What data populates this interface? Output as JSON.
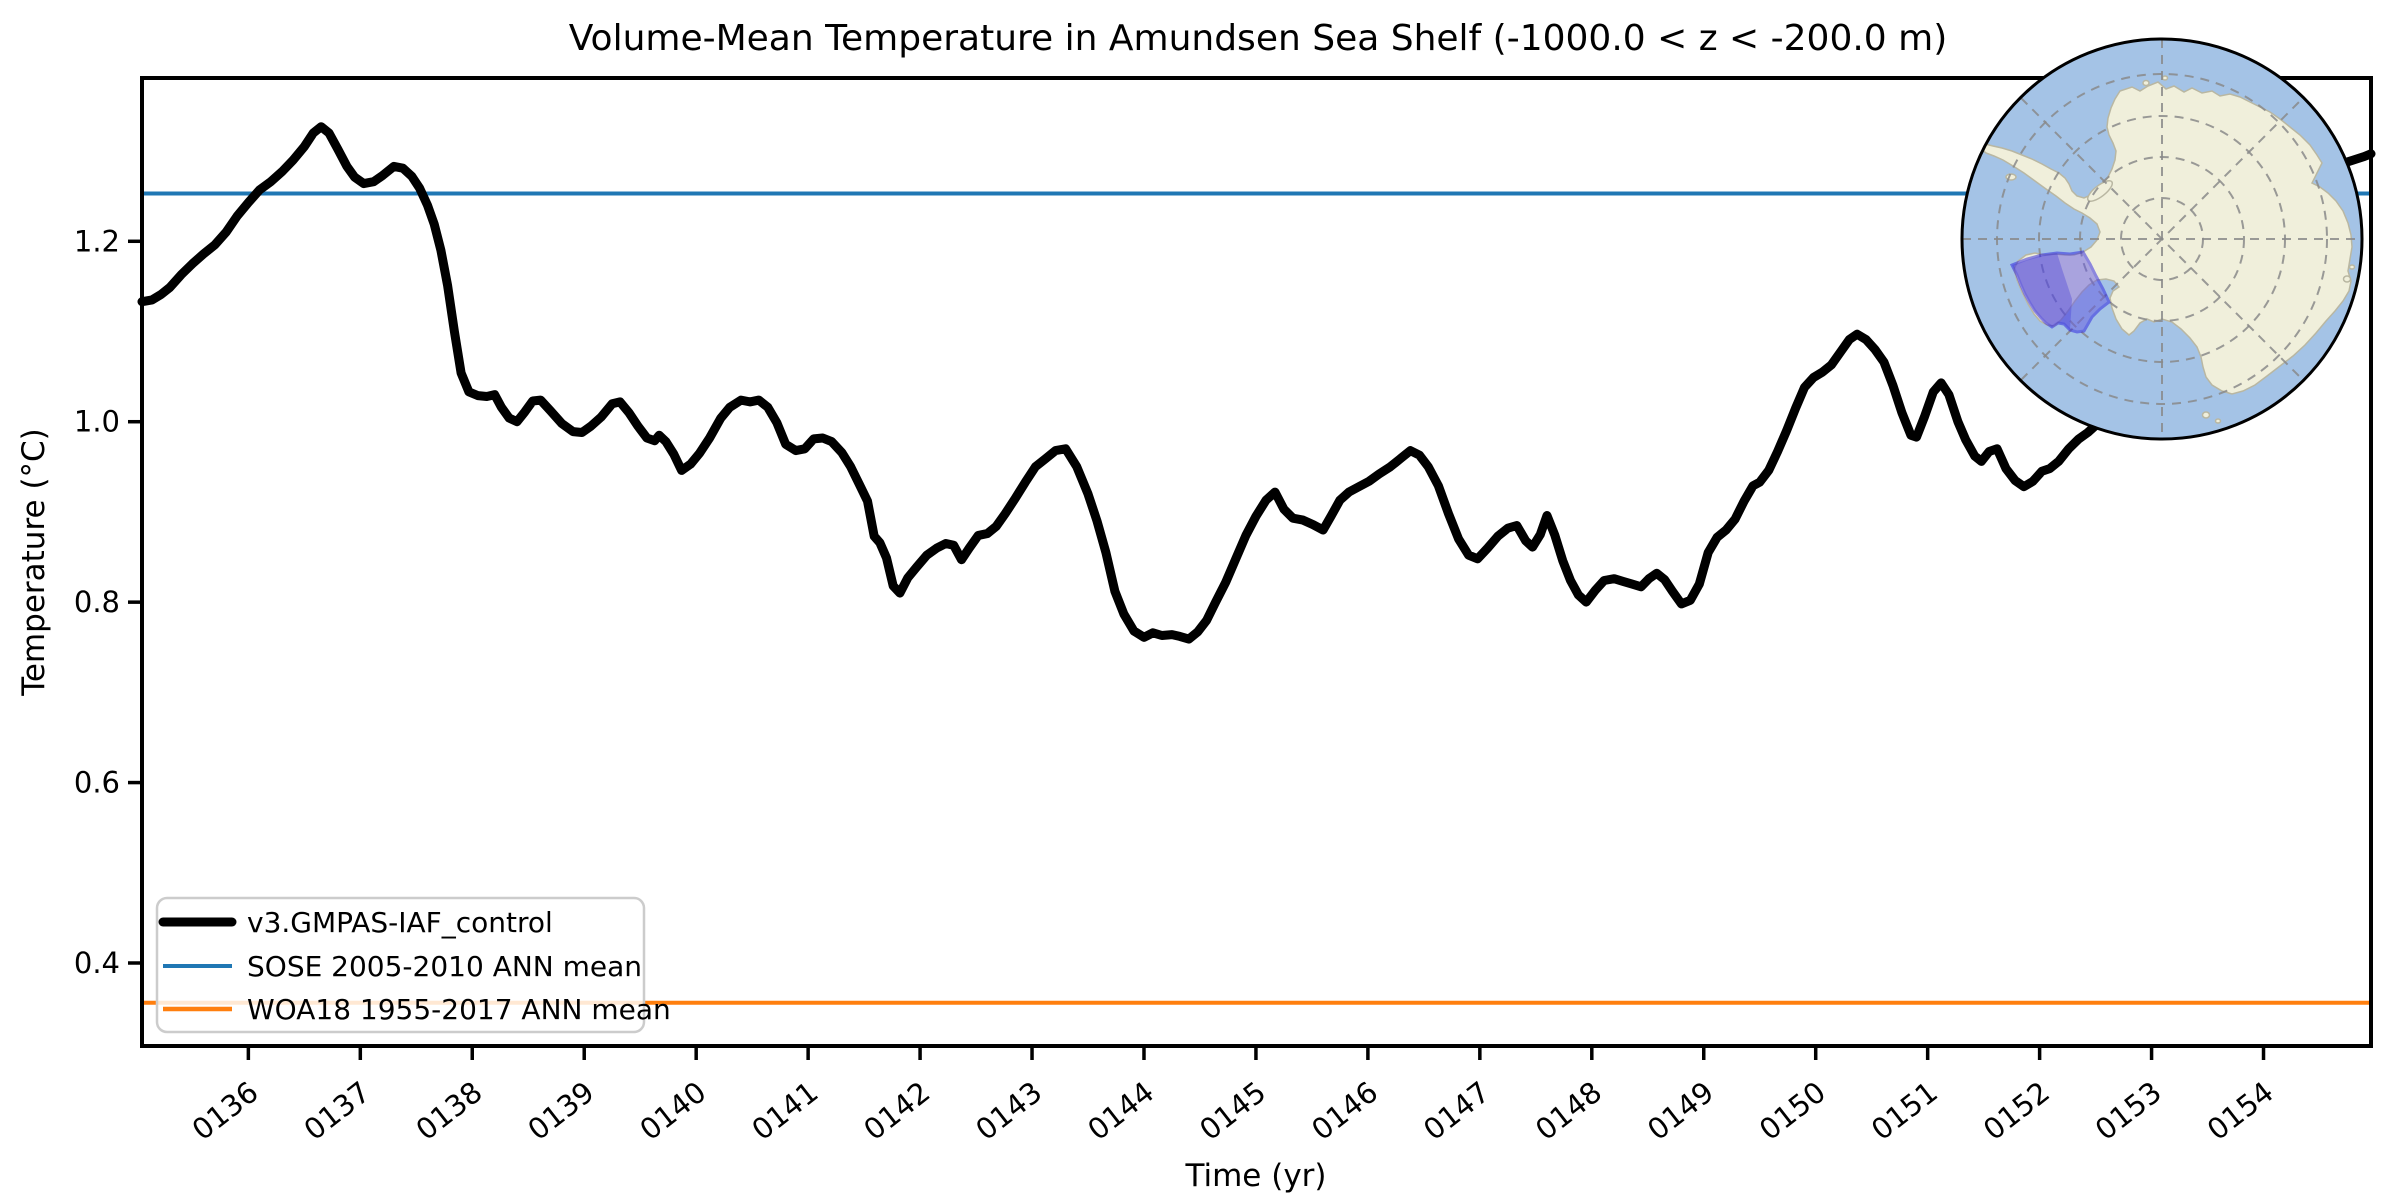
{
  "figure": {
    "title": "Volume-Mean Temperature in Amundsen Sea Shelf (-1000.0 < z < -200.0 m)"
  },
  "chart_data": {
    "type": "line",
    "title": "Volume-Mean Temperature in Amundsen Sea Shelf (-1000.0 < z < -200.0 m)",
    "xlabel": "Time (yr)",
    "ylabel": "Temperature (°C)",
    "xlim": [
      135.05,
      154.96
    ],
    "ylim": [
      0.308,
      1.381
    ],
    "grid": false,
    "legend_position": "lower left",
    "x_ticks": {
      "labels": [
        "0136",
        "0137",
        "0138",
        "0139",
        "0140",
        "0141",
        "0142",
        "0143",
        "0144",
        "0145",
        "0146",
        "0147",
        "0148",
        "0149",
        "0150",
        "0151",
        "0152",
        "0153",
        "0154"
      ],
      "years": [
        136,
        137,
        138,
        139,
        140,
        141,
        142,
        143,
        144,
        145,
        146,
        147,
        148,
        149,
        150,
        151,
        152,
        153,
        154
      ]
    },
    "y_ticks": {
      "labels": [
        "0.4",
        "0.6",
        "0.8",
        "1.0",
        "1.2"
      ],
      "values": [
        0.4,
        0.6,
        0.8,
        1.0,
        1.2
      ]
    },
    "series": [
      {
        "name": "v3.GMPAS-IAF_control",
        "color": "#000000",
        "style": "thick solid line, monthly volume-mean temperature",
        "points": [
          [
            135.05,
            1.133
          ],
          [
            135.14,
            1.135
          ],
          [
            135.22,
            1.141
          ],
          [
            135.3,
            1.149
          ],
          [
            135.4,
            1.163
          ],
          [
            135.5,
            1.175
          ],
          [
            135.6,
            1.186
          ],
          [
            135.7,
            1.196
          ],
          [
            135.8,
            1.21
          ],
          [
            135.9,
            1.228
          ],
          [
            136.0,
            1.243
          ],
          [
            136.1,
            1.257
          ],
          [
            136.2,
            1.266
          ],
          [
            136.3,
            1.277
          ],
          [
            136.4,
            1.29
          ],
          [
            136.5,
            1.305
          ],
          [
            136.58,
            1.32
          ],
          [
            136.65,
            1.327
          ],
          [
            136.72,
            1.32
          ],
          [
            136.8,
            1.302
          ],
          [
            136.88,
            1.283
          ],
          [
            136.95,
            1.271
          ],
          [
            137.03,
            1.264
          ],
          [
            137.12,
            1.266
          ],
          [
            137.2,
            1.273
          ],
          [
            137.3,
            1.283
          ],
          [
            137.38,
            1.281
          ],
          [
            137.46,
            1.272
          ],
          [
            137.53,
            1.259
          ],
          [
            137.6,
            1.24
          ],
          [
            137.66,
            1.219
          ],
          [
            137.72,
            1.19
          ],
          [
            137.78,
            1.151
          ],
          [
            137.84,
            1.1
          ],
          [
            137.9,
            1.054
          ],
          [
            137.97,
            1.033
          ],
          [
            138.05,
            1.029
          ],
          [
            138.13,
            1.028
          ],
          [
            138.2,
            1.03
          ],
          [
            138.26,
            1.016
          ],
          [
            138.33,
            1.004
          ],
          [
            138.4,
            1.0
          ],
          [
            138.47,
            1.011
          ],
          [
            138.54,
            1.023
          ],
          [
            138.61,
            1.024
          ],
          [
            138.7,
            1.012
          ],
          [
            138.8,
            0.998
          ],
          [
            138.9,
            0.989
          ],
          [
            138.98,
            0.988
          ],
          [
            139.06,
            0.995
          ],
          [
            139.15,
            1.005
          ],
          [
            139.25,
            1.02
          ],
          [
            139.32,
            1.022
          ],
          [
            139.4,
            1.01
          ],
          [
            139.48,
            0.995
          ],
          [
            139.56,
            0.982
          ],
          [
            139.63,
            0.979
          ],
          [
            139.67,
            0.985
          ],
          [
            139.73,
            0.978
          ],
          [
            139.8,
            0.964
          ],
          [
            139.87,
            0.946
          ],
          [
            139.95,
            0.953
          ],
          [
            140.03,
            0.965
          ],
          [
            140.12,
            0.982
          ],
          [
            140.22,
            1.004
          ],
          [
            140.3,
            1.016
          ],
          [
            140.4,
            1.024
          ],
          [
            140.48,
            1.022
          ],
          [
            140.56,
            1.024
          ],
          [
            140.64,
            1.016
          ],
          [
            140.72,
            0.999
          ],
          [
            140.8,
            0.975
          ],
          [
            140.89,
            0.968
          ],
          [
            140.97,
            0.97
          ],
          [
            141.05,
            0.981
          ],
          [
            141.13,
            0.982
          ],
          [
            141.21,
            0.978
          ],
          [
            141.3,
            0.966
          ],
          [
            141.38,
            0.95
          ],
          [
            141.46,
            0.93
          ],
          [
            141.53,
            0.912
          ],
          [
            141.59,
            0.873
          ],
          [
            141.64,
            0.866
          ],
          [
            141.7,
            0.849
          ],
          [
            141.76,
            0.818
          ],
          [
            141.82,
            0.81
          ],
          [
            141.89,
            0.827
          ],
          [
            141.97,
            0.839
          ],
          [
            142.06,
            0.852
          ],
          [
            142.15,
            0.86
          ],
          [
            142.23,
            0.865
          ],
          [
            142.3,
            0.863
          ],
          [
            142.37,
            0.847
          ],
          [
            142.44,
            0.86
          ],
          [
            142.52,
            0.874
          ],
          [
            142.6,
            0.876
          ],
          [
            142.68,
            0.884
          ],
          [
            142.76,
            0.898
          ],
          [
            142.85,
            0.915
          ],
          [
            142.94,
            0.933
          ],
          [
            143.03,
            0.95
          ],
          [
            143.12,
            0.959
          ],
          [
            143.21,
            0.968
          ],
          [
            143.3,
            0.97
          ],
          [
            143.4,
            0.95
          ],
          [
            143.5,
            0.92
          ],
          [
            143.58,
            0.89
          ],
          [
            143.66,
            0.855
          ],
          [
            143.74,
            0.812
          ],
          [
            143.82,
            0.787
          ],
          [
            143.91,
            0.768
          ],
          [
            144.0,
            0.761
          ],
          [
            144.08,
            0.766
          ],
          [
            144.16,
            0.763
          ],
          [
            144.25,
            0.764
          ],
          [
            144.32,
            0.762
          ],
          [
            144.4,
            0.759
          ],
          [
            144.48,
            0.767
          ],
          [
            144.56,
            0.78
          ],
          [
            144.64,
            0.8
          ],
          [
            144.73,
            0.822
          ],
          [
            144.82,
            0.848
          ],
          [
            144.91,
            0.874
          ],
          [
            145.0,
            0.895
          ],
          [
            145.09,
            0.913
          ],
          [
            145.17,
            0.922
          ],
          [
            145.25,
            0.903
          ],
          [
            145.33,
            0.893
          ],
          [
            145.42,
            0.891
          ],
          [
            145.51,
            0.886
          ],
          [
            145.6,
            0.88
          ],
          [
            145.67,
            0.895
          ],
          [
            145.75,
            0.913
          ],
          [
            145.83,
            0.922
          ],
          [
            145.92,
            0.928
          ],
          [
            146.01,
            0.934
          ],
          [
            146.1,
            0.942
          ],
          [
            146.2,
            0.95
          ],
          [
            146.3,
            0.96
          ],
          [
            146.38,
            0.968
          ],
          [
            146.46,
            0.963
          ],
          [
            146.54,
            0.95
          ],
          [
            146.63,
            0.929
          ],
          [
            146.72,
            0.898
          ],
          [
            146.81,
            0.87
          ],
          [
            146.9,
            0.852
          ],
          [
            146.98,
            0.848
          ],
          [
            147.07,
            0.86
          ],
          [
            147.16,
            0.873
          ],
          [
            147.25,
            0.882
          ],
          [
            147.33,
            0.885
          ],
          [
            147.41,
            0.868
          ],
          [
            147.47,
            0.861
          ],
          [
            147.54,
            0.875
          ],
          [
            147.6,
            0.896
          ],
          [
            147.67,
            0.874
          ],
          [
            147.74,
            0.846
          ],
          [
            147.81,
            0.824
          ],
          [
            147.88,
            0.808
          ],
          [
            147.95,
            0.8
          ],
          [
            148.03,
            0.813
          ],
          [
            148.11,
            0.824
          ],
          [
            148.2,
            0.826
          ],
          [
            148.28,
            0.823
          ],
          [
            148.36,
            0.82
          ],
          [
            148.44,
            0.817
          ],
          [
            148.51,
            0.826
          ],
          [
            148.58,
            0.832
          ],
          [
            148.65,
            0.825
          ],
          [
            148.72,
            0.812
          ],
          [
            148.8,
            0.798
          ],
          [
            148.88,
            0.802
          ],
          [
            148.96,
            0.82
          ],
          [
            149.04,
            0.855
          ],
          [
            149.12,
            0.872
          ],
          [
            149.2,
            0.88
          ],
          [
            149.28,
            0.892
          ],
          [
            149.36,
            0.912
          ],
          [
            149.44,
            0.929
          ],
          [
            149.5,
            0.933
          ],
          [
            149.58,
            0.946
          ],
          [
            149.66,
            0.967
          ],
          [
            149.74,
            0.99
          ],
          [
            149.82,
            1.015
          ],
          [
            149.9,
            1.038
          ],
          [
            149.98,
            1.049
          ],
          [
            150.06,
            1.055
          ],
          [
            150.14,
            1.063
          ],
          [
            150.22,
            1.077
          ],
          [
            150.3,
            1.091
          ],
          [
            150.37,
            1.097
          ],
          [
            150.45,
            1.091
          ],
          [
            150.53,
            1.08
          ],
          [
            150.61,
            1.066
          ],
          [
            150.69,
            1.04
          ],
          [
            150.77,
            1.01
          ],
          [
            150.85,
            0.985
          ],
          [
            150.9,
            0.983
          ],
          [
            150.97,
            1.005
          ],
          [
            151.05,
            1.033
          ],
          [
            151.12,
            1.043
          ],
          [
            151.19,
            1.03
          ],
          [
            151.27,
            1.0
          ],
          [
            151.34,
            0.98
          ],
          [
            151.42,
            0.962
          ],
          [
            151.48,
            0.956
          ],
          [
            151.55,
            0.967
          ],
          [
            151.62,
            0.97
          ],
          [
            151.7,
            0.948
          ],
          [
            151.78,
            0.935
          ],
          [
            151.86,
            0.928
          ],
          [
            151.94,
            0.934
          ],
          [
            152.02,
            0.945
          ],
          [
            152.09,
            0.948
          ],
          [
            152.17,
            0.956
          ],
          [
            152.26,
            0.97
          ],
          [
            152.35,
            0.981
          ],
          [
            152.43,
            0.988
          ],
          [
            152.52,
            0.998
          ],
          [
            152.65,
            1.02
          ],
          [
            152.8,
            1.048
          ],
          [
            152.95,
            1.075
          ],
          [
            153.1,
            1.105
          ],
          [
            153.25,
            1.135
          ],
          [
            153.4,
            1.165
          ],
          [
            153.55,
            1.195
          ],
          [
            153.7,
            1.222
          ],
          [
            153.85,
            1.244
          ],
          [
            154.0,
            1.258
          ],
          [
            154.15,
            1.266
          ],
          [
            154.3,
            1.27
          ],
          [
            154.45,
            1.274
          ],
          [
            154.58,
            1.28
          ],
          [
            154.7,
            1.286
          ],
          [
            154.8,
            1.29
          ],
          [
            154.9,
            1.294
          ],
          [
            154.96,
            1.297
          ]
        ]
      },
      {
        "name": "SOSE 2005-2010 ANN mean",
        "color": "#1f77b4",
        "style": "horizontal reference line",
        "value": 1.253
      },
      {
        "name": "WOA18 1955-2017 ANN mean",
        "color": "#ff7f0e",
        "style": "horizontal reference line",
        "value": 0.356
      }
    ]
  },
  "inset_map": {
    "description": "South polar stereographic map of Antarctica with dashed graticule",
    "highlight_label": "Amundsen Sea shelf region",
    "colors": {
      "ocean": "#a4c3e6",
      "land": "#f0efdb",
      "graticule": "#8a8a8a",
      "highlight_fill": "#6459e2",
      "highlight_fill_dark": "#4338d6",
      "highlight_stroke": "#2a1fe0",
      "border": "#000000"
    }
  }
}
